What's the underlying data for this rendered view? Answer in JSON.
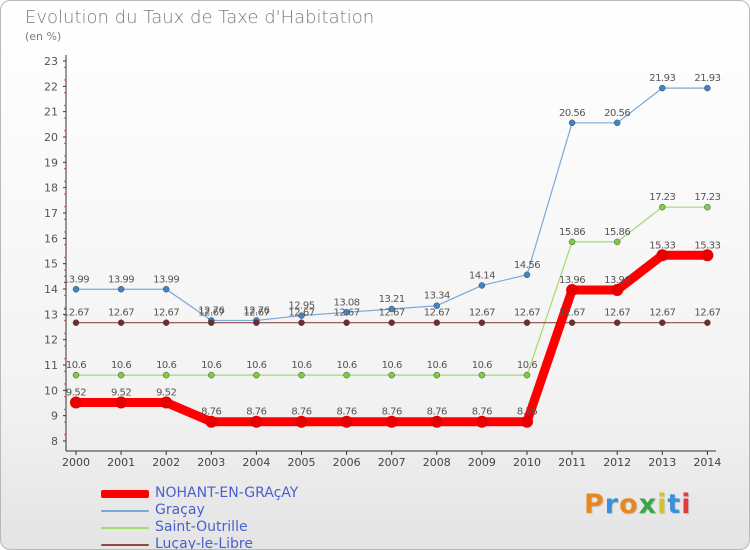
{
  "title": "Evolution du Taux de Taxe d'Habitation",
  "subtitle": "(en %)",
  "logo": {
    "text": "Proxiti",
    "colors": [
      "#e8861f",
      "#3a8fd6",
      "#e8861f",
      "#3aa64a",
      "#d8c12a",
      "#3a8fd6",
      "#e23a3a"
    ]
  },
  "chart_data": {
    "type": "line",
    "title": "Evolution du Taux de Taxe d'Habitation",
    "ylabel": "(en %)",
    "xlabel": "",
    "ylim": [
      8,
      23
    ],
    "yticks": [
      8,
      9,
      10,
      11,
      12,
      13,
      14,
      15,
      16,
      17,
      18,
      19,
      20,
      21,
      22,
      23
    ],
    "grid": false,
    "legend_position": "bottom-left",
    "x": [
      "2000",
      "2001",
      "2002",
      "2003",
      "2004",
      "2005",
      "2006",
      "2007",
      "2008",
      "2009",
      "2010",
      "2011",
      "2012",
      "2013",
      "2014"
    ],
    "series": [
      {
        "name": "NOHANT-EN-GRAçAY",
        "color": "#ff0000",
        "markerColor": "#e60000",
        "strokeWidth": 9,
        "markerR": 6,
        "values": [
          9.52,
          9.52,
          9.52,
          8.76,
          8.76,
          8.76,
          8.76,
          8.76,
          8.76,
          8.76,
          8.76,
          13.96,
          13.96,
          15.33,
          15.33
        ],
        "labels": [
          "9.52",
          "9.52",
          "9.52",
          "8.76",
          "8.76",
          "8.76",
          "8.76",
          "8.76",
          "8.76",
          "8.76",
          "8.76",
          "13.96",
          "13.96",
          "15.33",
          "15.33"
        ]
      },
      {
        "name": "Graçay",
        "color": "#7aa9d6",
        "markerColor": "#3f86c8",
        "strokeWidth": 1.2,
        "markerR": 3,
        "values": [
          13.99,
          13.99,
          13.99,
          12.76,
          12.76,
          12.95,
          13.08,
          13.21,
          13.34,
          14.14,
          14.56,
          20.56,
          20.56,
          21.93,
          21.93
        ],
        "labels": [
          "13.99",
          "13.99",
          "13.99",
          "12.76",
          "12.76",
          "12.95",
          "13.08",
          "13.21",
          "13.34",
          "14.14",
          "14.56",
          "20.56",
          "20.56",
          "21.93",
          "21.93"
        ]
      },
      {
        "name": "Saint-Outrille",
        "color": "#a2da6e",
        "markerColor": "#7fce3e",
        "strokeWidth": 1.2,
        "markerR": 3,
        "values": [
          10.6,
          10.6,
          10.6,
          10.6,
          10.6,
          10.6,
          10.6,
          10.6,
          10.6,
          10.6,
          10.6,
          15.86,
          15.86,
          17.23,
          17.23
        ],
        "labels": [
          "10.6",
          "10.6",
          "10.6",
          "10.6",
          "10.6",
          "10.6",
          "10.6",
          "10.6",
          "10.6",
          "10.6",
          "10.6",
          "15.86",
          "15.86",
          "17.23",
          "17.23"
        ]
      },
      {
        "name": "Luçay-le-Libre",
        "color": "#8a4a4a",
        "markerColor": "#6e2e2e",
        "strokeWidth": 1.2,
        "markerR": 3,
        "values": [
          12.67,
          12.67,
          12.67,
          12.67,
          12.67,
          12.67,
          12.67,
          12.67,
          12.67,
          12.67,
          12.67,
          12.67,
          12.67,
          12.67,
          12.67
        ],
        "labels": [
          "12.67",
          "12.67",
          "12.67",
          "12.67",
          "12.67",
          "12.67",
          "12.67",
          "12.67",
          "12.67",
          "12.67",
          "12.67",
          "12.67",
          "12.67",
          "12.67",
          "12.67"
        ]
      }
    ]
  }
}
